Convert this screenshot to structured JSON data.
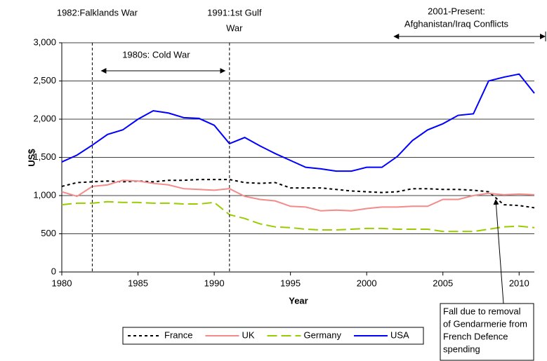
{
  "chart_data": {
    "type": "line",
    "x_label": "Year",
    "y_label": "US$",
    "x": [
      1980,
      1981,
      1982,
      1983,
      1984,
      1985,
      1986,
      1987,
      1988,
      1989,
      1990,
      1991,
      1992,
      1993,
      1994,
      1995,
      1996,
      1997,
      1998,
      1999,
      2000,
      2001,
      2002,
      2003,
      2004,
      2005,
      2006,
      2007,
      2008,
      2009,
      2010,
      2011
    ],
    "series": [
      {
        "name": "France",
        "color": "#000000",
        "dash": "4,4",
        "values": [
          1120,
          1170,
          1180,
          1190,
          1180,
          1190,
          1180,
          1200,
          1200,
          1210,
          1210,
          1210,
          1170,
          1160,
          1170,
          1100,
          1100,
          1100,
          1080,
          1060,
          1050,
          1040,
          1050,
          1090,
          1090,
          1080,
          1080,
          1070,
          1050,
          880,
          870,
          840
        ]
      },
      {
        "name": "UK",
        "color": "#f48a8a",
        "dash": "none",
        "values": [
          1050,
          990,
          1120,
          1140,
          1200,
          1190,
          1160,
          1140,
          1090,
          1080,
          1070,
          1090,
          990,
          950,
          930,
          860,
          850,
          800,
          810,
          800,
          830,
          850,
          850,
          860,
          860,
          950,
          950,
          1000,
          1030,
          1010,
          1020,
          1010
        ]
      },
      {
        "name": "Germany",
        "color": "#99cc00",
        "dash": "14,6",
        "values": [
          880,
          900,
          900,
          920,
          910,
          910,
          900,
          900,
          890,
          890,
          910,
          750,
          700,
          630,
          590,
          580,
          560,
          550,
          550,
          560,
          570,
          570,
          560,
          560,
          560,
          530,
          530,
          530,
          560,
          590,
          600,
          580
        ]
      },
      {
        "name": "USA",
        "color": "#0000ff",
        "dash": "none",
        "values": [
          1440,
          1530,
          1660,
          1800,
          1860,
          2000,
          2110,
          2080,
          2020,
          2010,
          1920,
          1680,
          1760,
          1650,
          1550,
          1460,
          1370,
          1350,
          1320,
          1320,
          1370,
          1370,
          1510,
          1720,
          1860,
          1940,
          2050,
          2070,
          2500,
          2550,
          2590,
          2340
        ]
      }
    ],
    "xlim": [
      1980,
      2011
    ],
    "xticks": [
      1980,
      1985,
      1990,
      1995,
      2000,
      2005,
      2010
    ],
    "ylim": [
      0,
      3000
    ],
    "yticks": [
      0,
      500,
      {
        "value": 1000,
        "label": "1,000"
      },
      {
        "value": 1500,
        "label": "1,500"
      },
      {
        "value": 2000,
        "label": "2,000"
      },
      {
        "value": 2500,
        "label": "2,500"
      },
      {
        "value": 3000,
        "label": "3,000"
      }
    ],
    "grid": true,
    "legend": "bottom",
    "events": [
      {
        "x": 1982,
        "lines": [
          "1982:Falklands War"
        ]
      },
      {
        "x": 1991,
        "lines": [
          "1991:1st Gulf",
          "War"
        ]
      }
    ],
    "periods": [
      {
        "span": [
          1982.6,
          1990.7
        ],
        "lines": [
          "1980s: Cold War"
        ]
      },
      {
        "span": [
          2001.8,
          2011.7
        ],
        "lines": [
          "2001-Present:",
          "Afghanistan/Iraq Conflicts"
        ]
      }
    ],
    "note": {
      "lines": [
        "Fall due to removal",
        "of Gendarmerie from",
        "French Defence",
        "spending"
      ]
    }
  }
}
